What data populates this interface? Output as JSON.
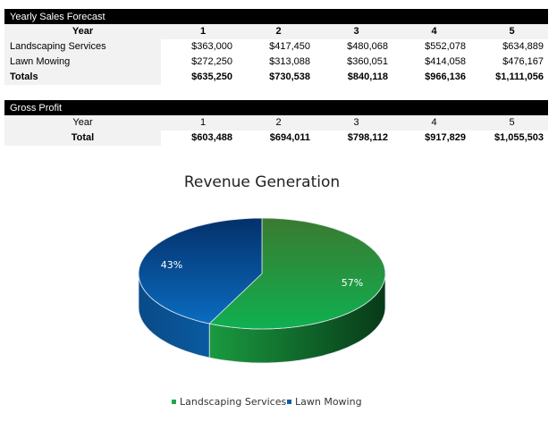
{
  "sales": {
    "title": "Yearly Sales Forecast",
    "year_label": "Year",
    "years": [
      "1",
      "2",
      "3",
      "4",
      "5"
    ],
    "rows": [
      {
        "label": "Landscaping Services",
        "values": [
          "$363,000",
          "$417,450",
          "$480,068",
          "$552,078",
          "$634,889"
        ]
      },
      {
        "label": "Lawn Mowing",
        "values": [
          "$272,250",
          "$313,088",
          "$360,051",
          "$414,058",
          "$476,167"
        ]
      }
    ],
    "totals": {
      "label": "Totals",
      "values": [
        "$635,250",
        "$730,538",
        "$840,118",
        "$966,136",
        "$1,111,056"
      ]
    }
  },
  "profit": {
    "title": "Gross Profit",
    "year_label": "Year",
    "years": [
      "1",
      "2",
      "3",
      "4",
      "5"
    ],
    "total": {
      "label": "Total",
      "values": [
        "$603,488",
        "$694,011",
        "$798,112",
        "$917,829",
        "$1,055,503"
      ]
    }
  },
  "chart_data": {
    "type": "pie",
    "title": "Revenue Generation",
    "style": "3d",
    "categories": [
      "Landscaping Services",
      "Lawn Mowing"
    ],
    "values": [
      57,
      43
    ],
    "labels": [
      "57%",
      "43%"
    ],
    "colors": [
      "#1ea84a",
      "#0a5fa8"
    ],
    "legend": "bottom"
  }
}
